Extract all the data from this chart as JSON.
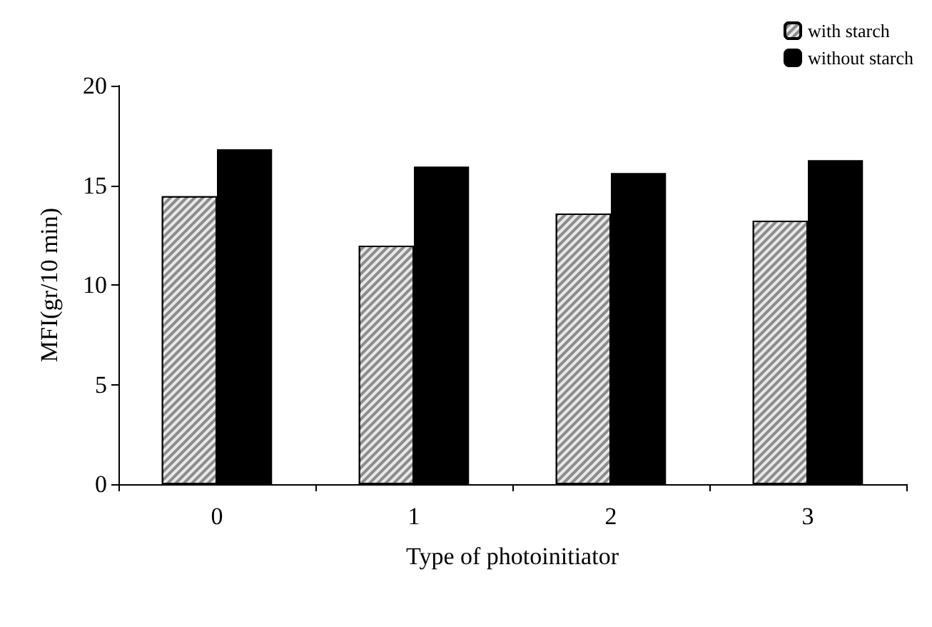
{
  "chart_data": {
    "type": "bar",
    "xlabel": "Type of photoinitiator",
    "ylabel": "MFI(gr/10 min)",
    "categories": [
      "0",
      "1",
      "2",
      "3"
    ],
    "series": [
      {
        "name": "with starch",
        "color": "#8c8c8c",
        "values": [
          14.45,
          11.97,
          13.58,
          13.23
        ]
      },
      {
        "name": "without starch",
        "color": "#000000",
        "values": [
          16.81,
          15.94,
          15.62,
          16.26
        ]
      }
    ],
    "ylim": [
      0,
      20
    ],
    "yticks": [
      0,
      5,
      10,
      15,
      20
    ],
    "grid": false,
    "legend": "top right"
  }
}
